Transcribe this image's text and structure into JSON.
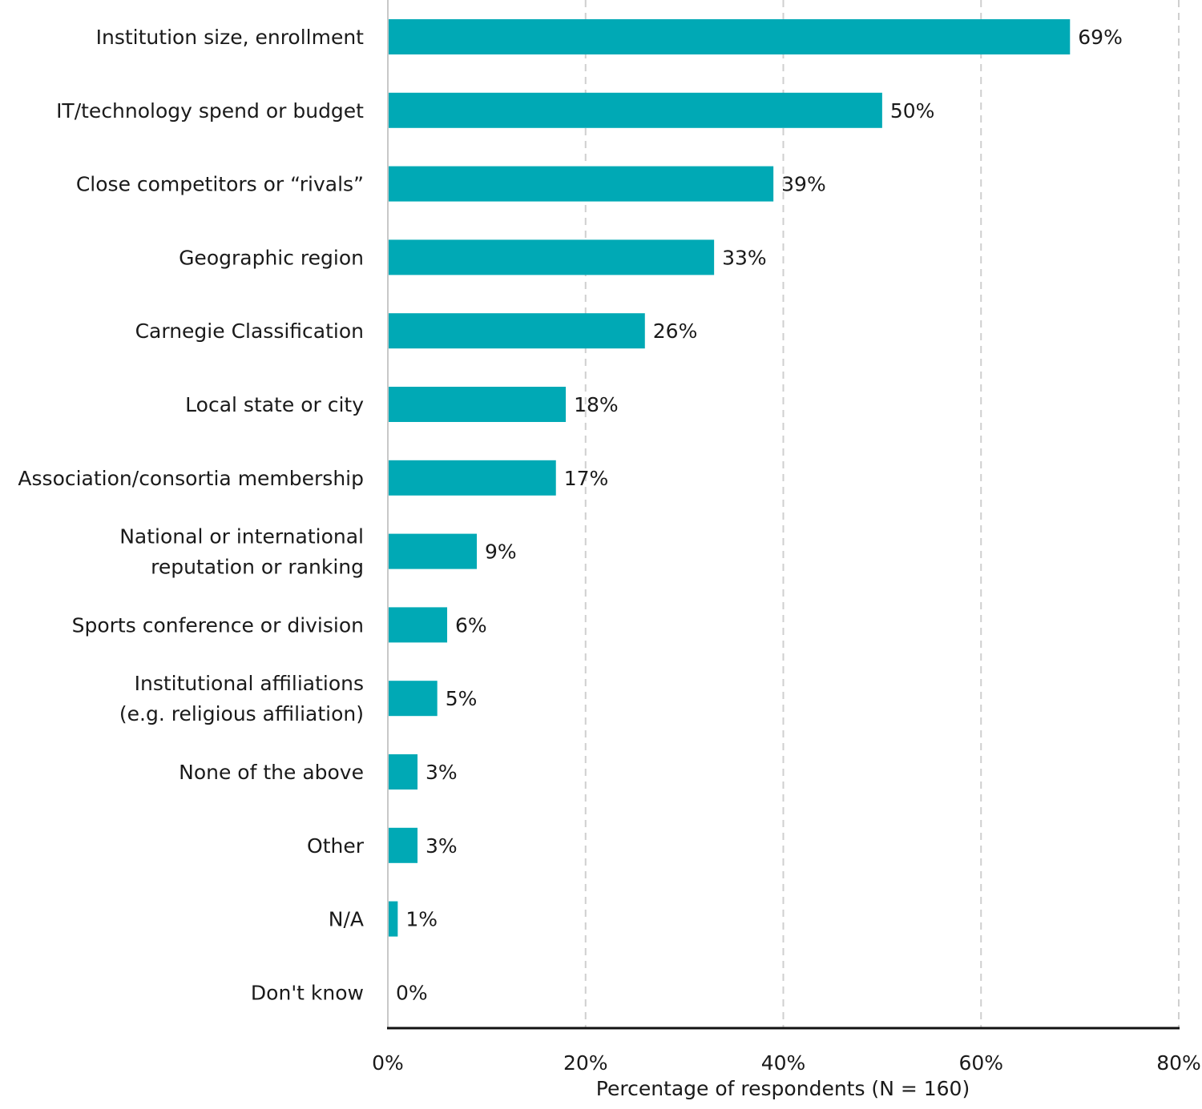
{
  "chart_data": {
    "type": "bar",
    "orientation": "horizontal",
    "categories": [
      [
        "Institution size, enrollment"
      ],
      [
        "IT/technology spend or budget"
      ],
      [
        "Close competitors or “rivals”"
      ],
      [
        "Geographic region"
      ],
      [
        "Carnegie Classification"
      ],
      [
        "Local state or city"
      ],
      [
        "Association/consortia membership"
      ],
      [
        "National or international",
        "reputation or ranking"
      ],
      [
        "Sports conference or division"
      ],
      [
        "Institutional affiliations",
        "(e.g. religious affiliation)"
      ],
      [
        "None of the above"
      ],
      [
        "Other"
      ],
      [
        "N/A"
      ],
      [
        "Don't know"
      ]
    ],
    "values": [
      69,
      50,
      39,
      33,
      26,
      18,
      17,
      9,
      6,
      5,
      3,
      3,
      1,
      0
    ],
    "value_labels": [
      "69%",
      "50%",
      "39%",
      "33%",
      "26%",
      "18%",
      "17%",
      "9%",
      "6%",
      "5%",
      "3%",
      "3%",
      "1%",
      "0%"
    ],
    "xlim": [
      0,
      80
    ],
    "xticks": [
      0,
      20,
      40,
      60,
      80
    ],
    "xtick_labels": [
      "0%",
      "20%",
      "40%",
      "60%",
      "80%"
    ],
    "xlabel": "Percentage of respondents (N = 160)",
    "ylabel": "",
    "title": "",
    "grid": true,
    "bar_color": "#00a9b5"
  }
}
